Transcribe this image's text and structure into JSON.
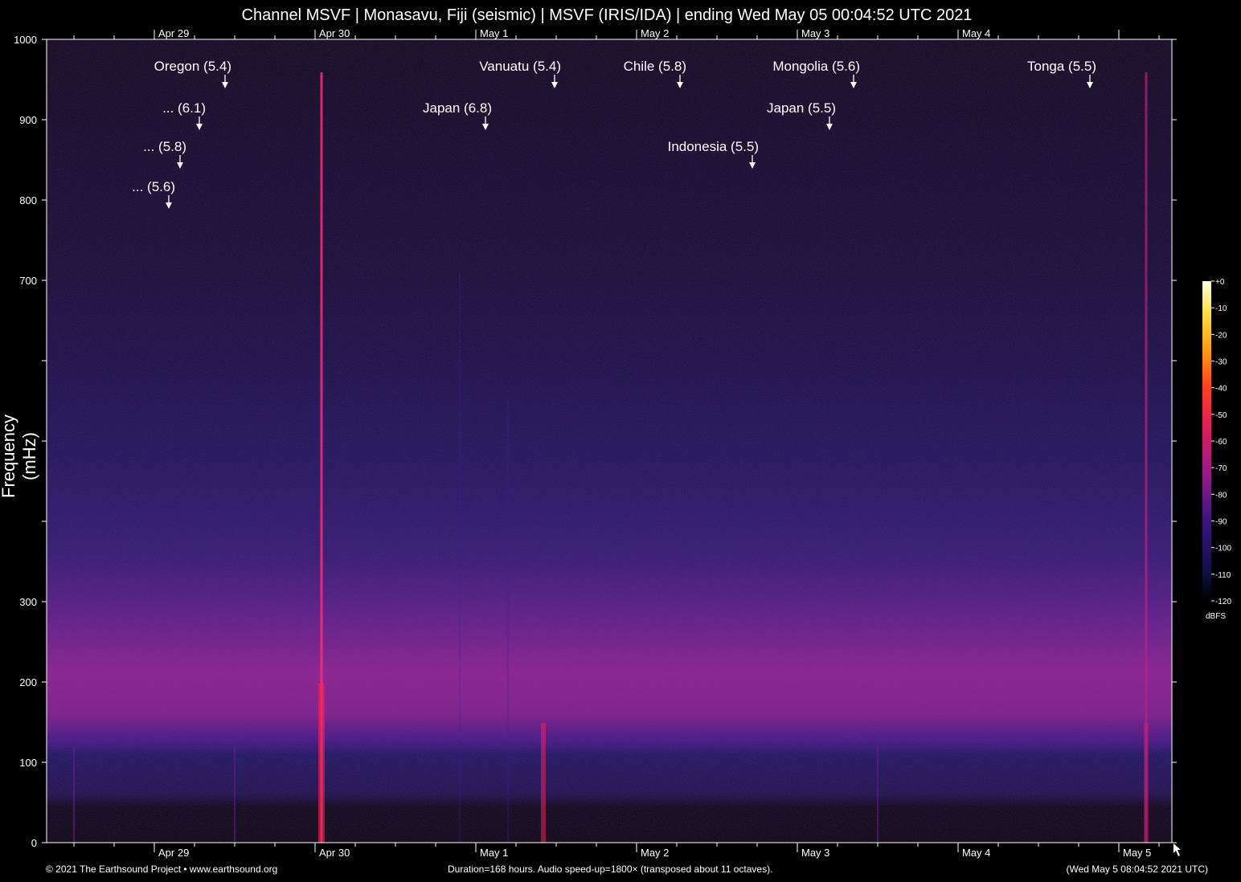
{
  "colors": {
    "background": "#000000",
    "text": "#ffffff",
    "axis": "#ffffff"
  },
  "chart_data": {
    "type": "heatmap",
    "title": "Channel MSVF | Monasavu, Fiji (seismic) | MSVF (IRIS/IDA) | ending Wed May 05 00:04:52 UTC 2021",
    "ylabel": "Frequency (mHz)",
    "ylim": [
      0,
      1000
    ],
    "y_ticks": [
      "0",
      "100",
      "200",
      "300",
      "",
      "",
      "",
      "700",
      "800",
      "900",
      "1000"
    ],
    "x_ticks": [
      "Apr 29",
      "Apr 30",
      "May 1",
      "May 2",
      "May 3",
      "May 4",
      "May 5"
    ],
    "x_ticks_top": [
      "Apr 29",
      "Apr 30",
      "May 1",
      "May 2",
      "May 3",
      "May 4"
    ],
    "x_range_days": [
      -0.67,
      6.33
    ],
    "annotations": [
      {
        "label": "Oregon (5.4)",
        "day": 0.44,
        "freq": 940
      },
      {
        "label": "... (6.1)",
        "day": 0.28,
        "freq": 888
      },
      {
        "label": "... (5.8)",
        "day": 0.16,
        "freq": 840
      },
      {
        "label": "... (5.6)",
        "day": 0.09,
        "freq": 790
      },
      {
        "label": "Japan (6.8)",
        "day": 2.06,
        "freq": 888
      },
      {
        "label": "Vanuatu (5.4)",
        "day": 2.49,
        "freq": 940
      },
      {
        "label": "Chile (5.8)",
        "day": 3.27,
        "freq": 940
      },
      {
        "label": "Indonesia (5.5)",
        "day": 3.72,
        "freq": 840
      },
      {
        "label": "Mongolia (5.6)",
        "day": 4.35,
        "freq": 940
      },
      {
        "label": "Japan (5.5)",
        "day": 4.2,
        "freq": 888
      },
      {
        "label": "Tonga (5.5)",
        "day": 5.82,
        "freq": 940
      }
    ],
    "colorbar": {
      "unit": "dBFS",
      "ticks": [
        "+0",
        "-10",
        "-20",
        "-30",
        "-40",
        "-50",
        "-60",
        "-70",
        "-80",
        "-90",
        "-100",
        "-110",
        "-120"
      ],
      "range": [
        -120,
        0
      ]
    }
  },
  "footer": {
    "left": "© 2021 The Earthsound Project • www.earthsound.org",
    "mid": "Duration=168 hours. Audio speed-up=1800× (transposed about 11 octaves).",
    "right": "(Wed May  5 08:04:52 2021 UTC)"
  }
}
